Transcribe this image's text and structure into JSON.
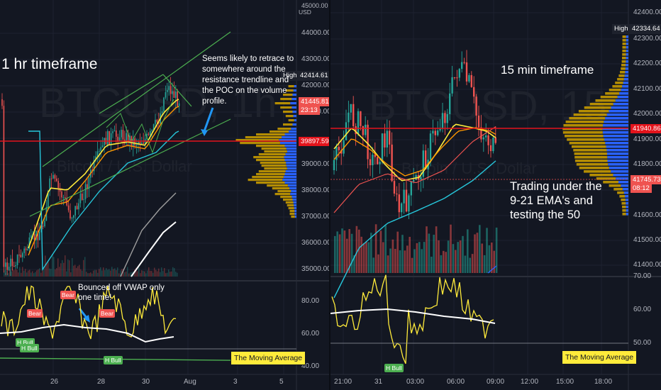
{
  "left": {
    "currency": "USD",
    "watermark": "BTCUSD, 1h",
    "watermark_sub": "Bitcoin / U.S. Dollar",
    "timeframe_label": "1 hr timeframe",
    "annotation_retrace": "Seems likely to retrace to somewhere around the resistance trendline and the POC on the volume profile.",
    "annotation_vwap": "Bounced off VWAP only one time!",
    "price_ticks": [
      "44000.00",
      "43000.00",
      "42000.00",
      "41000.00",
      "39000.00",
      "38000.00",
      "37000.00",
      "36000.00",
      "35000.00"
    ],
    "top_tick": "45000.00",
    "high_label": "High",
    "high_value": "42414.61",
    "last_price": "41445.81",
    "countdown": "23:13",
    "red_line_price": "39897.59",
    "osc_ticks": [
      "80.00",
      "60.00",
      "40.00"
    ],
    "date_ticks": [
      "26",
      "28",
      "30",
      "Aug",
      "3",
      "5"
    ],
    "moving_average_label": "The Moving Average",
    "signal_bear": "Bear",
    "signal_h_bull": "H Bull"
  },
  "right": {
    "watermark": "BTCUSD, 15",
    "watermark_sub": "Bitcoin / U.S. Dollar",
    "timeframe_label": "15 min timeframe",
    "annotation_trading": "Trading under the 9-21 EMA's and testing the 50",
    "price_ticks": [
      "42400.00",
      "42300.00",
      "42200.00",
      "42100.00",
      "42000.00",
      "41900.00",
      "41800.00",
      "41600.00",
      "41500.00",
      "41400.00"
    ],
    "high_label": "High",
    "high_value": "42334.64",
    "red_line_price": "41940.86",
    "last_price": "41745.73",
    "countdown": "08:12",
    "osc_ticks": [
      "70.00",
      "60.00",
      "50.00"
    ],
    "time_ticks": [
      "21:00",
      "31",
      "03:00",
      "06:00",
      "09:00",
      "12:00",
      "15:00",
      "18:00"
    ],
    "moving_average_label": "The Moving Average",
    "signal_h_bull": "H Bull"
  },
  "colors": {
    "background": "#131722",
    "bull": "#26a69a",
    "bear": "#ef5350",
    "ema9": "#ffeb3b",
    "ema21": "#ff9800",
    "ema50": "#26c6da",
    "trend": "#4caf50",
    "price_line": "#e3141c",
    "volume_profile_up": "#2962ff",
    "volume_profile_down": "#c79a00",
    "ma_box": "#ffeb3b"
  }
}
